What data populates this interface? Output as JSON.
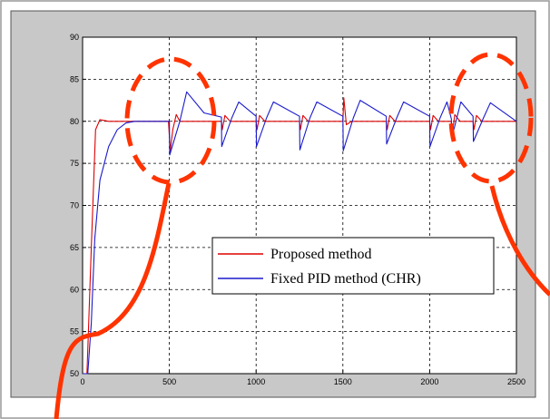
{
  "chart_data": {
    "type": "line",
    "title": "",
    "xlabel": "",
    "ylabel": "",
    "xlim": [
      0,
      2500
    ],
    "ylim": [
      50,
      90
    ],
    "x_ticks": [
      0,
      500,
      1000,
      1500,
      2000,
      2500
    ],
    "y_ticks": [
      50,
      55,
      60,
      65,
      70,
      75,
      80,
      85,
      90
    ],
    "grid": true,
    "legend_position": "lower-right",
    "setpoint": 80,
    "disturbance_times": [
      500,
      800,
      1000,
      1250,
      1500,
      1750,
      2000,
      2125,
      2250
    ],
    "series": [
      {
        "name": "Proposed method",
        "color": "#dd0000",
        "x": [
          0,
          25,
          50,
          75,
          100,
          150,
          300,
          495,
          505,
          520,
          540,
          560,
          800,
          805,
          820,
          850,
          1000,
          1005,
          1020,
          1050,
          1250,
          1255,
          1270,
          1300,
          1500,
          1505,
          1520,
          1550,
          1750,
          1755,
          1770,
          1800,
          2000,
          2005,
          2020,
          2050,
          2125,
          2130,
          2145,
          2175,
          2250,
          2255,
          2270,
          2300,
          2500
        ],
        "y": [
          50,
          50,
          65,
          79,
          80.2,
          80,
          80,
          80,
          76.5,
          79,
          80.8,
          80,
          80,
          79,
          80.7,
          80,
          80,
          79,
          80.7,
          80,
          80,
          79,
          80.7,
          80,
          80,
          82.8,
          79.6,
          80,
          80,
          79,
          80.7,
          80,
          80,
          79,
          80.7,
          80,
          80,
          78.5,
          80.8,
          80,
          80,
          79,
          80.7,
          80,
          80
        ]
      },
      {
        "name": "Fixed PID method (CHR)",
        "color": "#1a1acc",
        "x": [
          0,
          30,
          50,
          70,
          100,
          150,
          200,
          250,
          300,
          500,
          502,
          560,
          600,
          700,
          800,
          802,
          860,
          900,
          1000,
          1002,
          1060,
          1100,
          1250,
          1252,
          1310,
          1350,
          1500,
          1502,
          1560,
          1600,
          1750,
          1752,
          1810,
          1850,
          2000,
          2002,
          2060,
          2100,
          2125,
          2127,
          2180,
          2250,
          2252,
          2310,
          2350,
          2500
        ],
        "y": [
          50,
          50,
          56,
          66,
          73,
          77,
          79,
          79.8,
          80,
          80,
          76,
          80,
          83.5,
          81,
          80.5,
          77,
          80.4,
          82.3,
          80.6,
          77,
          80.4,
          82.3,
          80.6,
          76.6,
          80.4,
          82.3,
          80.6,
          76.5,
          80.4,
          82.5,
          80.6,
          77.3,
          80.4,
          82.3,
          80.6,
          77,
          80.4,
          82.3,
          80.3,
          78,
          82.3,
          80.6,
          77.6,
          80.4,
          82.2,
          80
        ]
      }
    ]
  },
  "legend": {
    "entries": [
      "Proposed method",
      "Fixed PID method (CHR)"
    ]
  },
  "annotation": {
    "color": "#ff3300"
  }
}
